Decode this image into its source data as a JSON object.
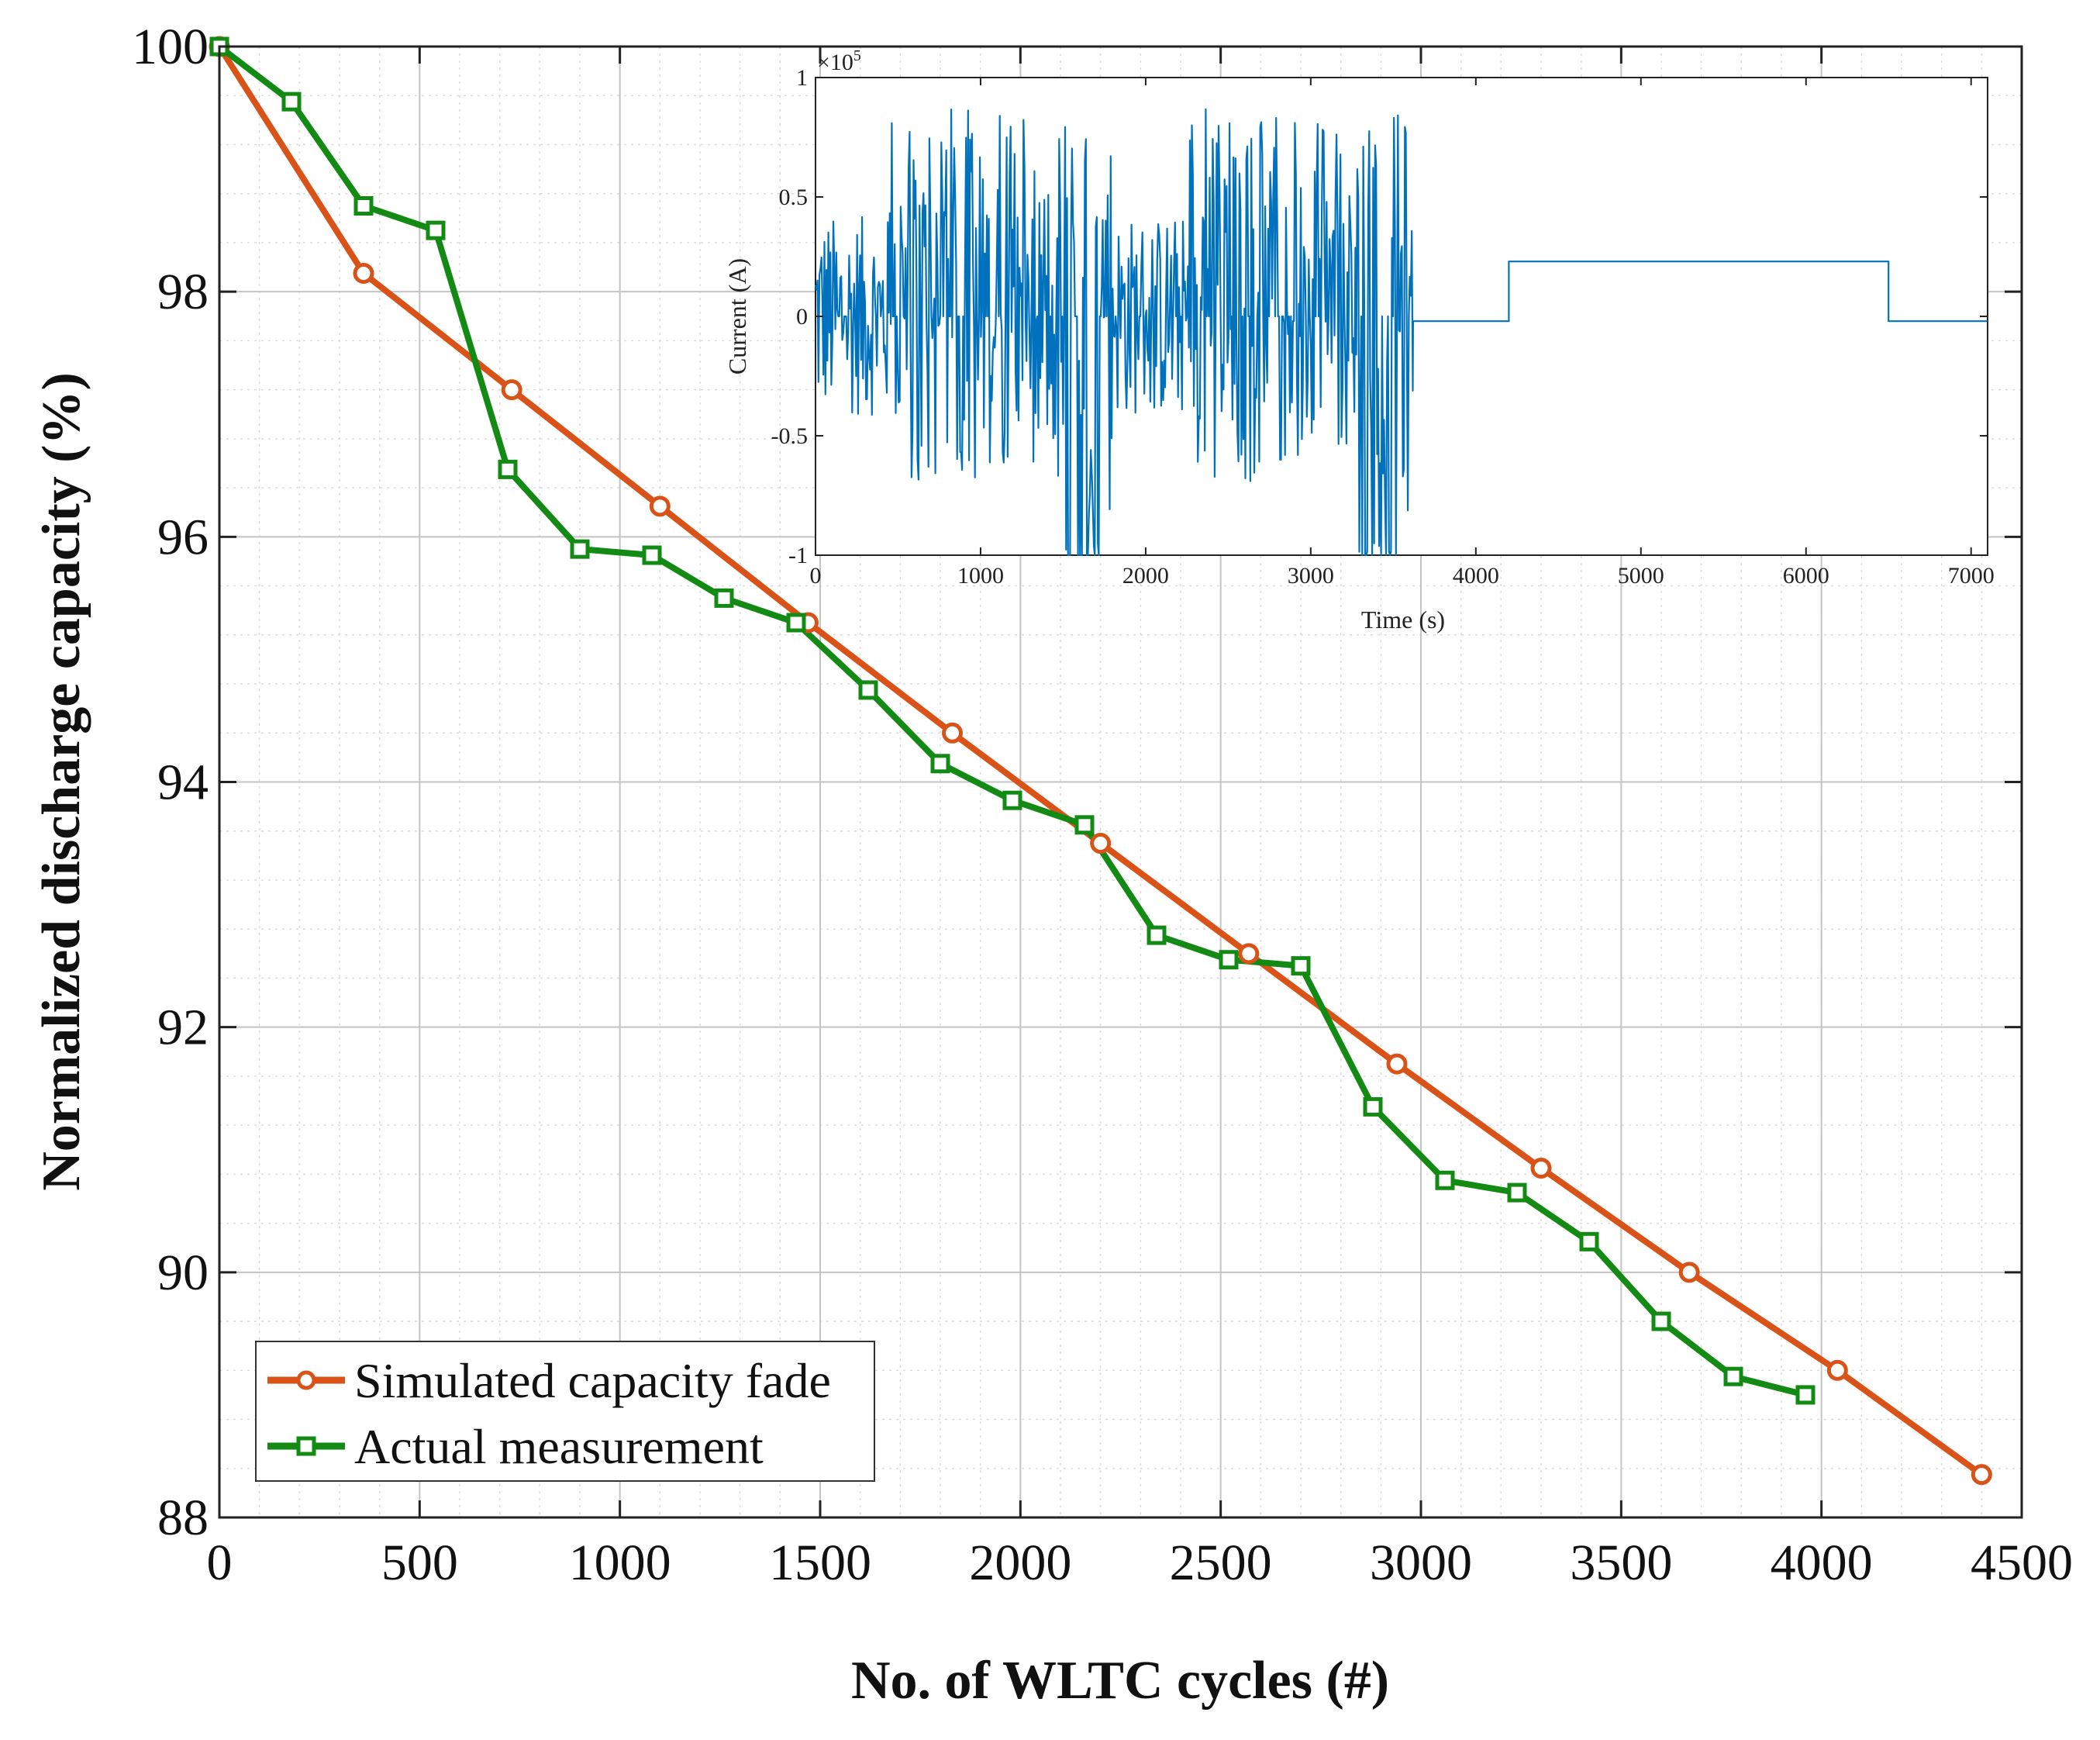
{
  "chart_data": [
    {
      "type": "line",
      "title": "",
      "xlabel": "No. of WLTC cycles (#)",
      "ylabel": "Normalized discharge capacity (%)",
      "xlim": [
        0,
        4500
      ],
      "ylim": [
        88,
        100
      ],
      "xticks": [
        0,
        500,
        1000,
        1500,
        2000,
        2500,
        3000,
        3500,
        4000,
        4500
      ],
      "yticks": [
        88,
        90,
        92,
        94,
        96,
        98,
        100
      ],
      "grid": true,
      "legend_position": "bottom-left",
      "series": [
        {
          "name": "Simulated capacity fade",
          "color": "#D95319",
          "marker": "circle",
          "x": [
            0,
            360,
            730,
            1100,
            1470,
            1830,
            2200,
            2570,
            2940,
            3300,
            3670,
            4040,
            4400
          ],
          "y": [
            100,
            98.15,
            97.2,
            96.25,
            95.3,
            94.4,
            93.5,
            92.6,
            91.7,
            90.85,
            90.0,
            89.2,
            88.35
          ]
        },
        {
          "name": "Actual measurement",
          "color": "#138A13",
          "marker": "square",
          "x": [
            0,
            180,
            360,
            540,
            720,
            900,
            1080,
            1260,
            1440,
            1620,
            1800,
            1980,
            2160,
            2340,
            2520,
            2700,
            2880,
            3060,
            3240,
            3420,
            3600,
            3780,
            3960
          ],
          "y": [
            100,
            99.55,
            98.7,
            98.5,
            96.55,
            95.9,
            95.85,
            95.5,
            95.3,
            94.75,
            94.15,
            93.85,
            93.65,
            92.75,
            92.55,
            92.5,
            91.35,
            90.75,
            90.65,
            90.25,
            89.6,
            89.15,
            89.0
          ]
        }
      ]
    },
    {
      "type": "line",
      "title": "",
      "xlabel": "Time (s)",
      "ylabel": "Current (A)",
      "exponent_label": "×10",
      "exponent_power": "5",
      "xlim": [
        0,
        7100
      ],
      "ylim": [
        -1,
        1
      ],
      "xticks": [
        0,
        1000,
        2000,
        3000,
        4000,
        5000,
        6000,
        7000
      ],
      "yticks": [
        -1,
        -0.5,
        0,
        0.5,
        1
      ],
      "grid": false,
      "color": "#0072BD",
      "description_of_series": "WLTC drive-cycle current, two cycles of rapidly varying current (approximately -1 to 0.88 ×10^5 A) from 0 to 3600 s, then rest at about -0.02 until 4200 s, constant 0.23 until 6500 s, then about -0.02 until the end",
      "noise_end": 3620,
      "steps": [
        {
          "x": 3620,
          "y": -0.02
        },
        {
          "x": 4200,
          "y": -0.02
        },
        {
          "x": 4200,
          "y": 0.23
        },
        {
          "x": 6500,
          "y": 0.23
        },
        {
          "x": 6500,
          "y": -0.02
        },
        {
          "x": 7100,
          "y": -0.02
        }
      ]
    }
  ]
}
